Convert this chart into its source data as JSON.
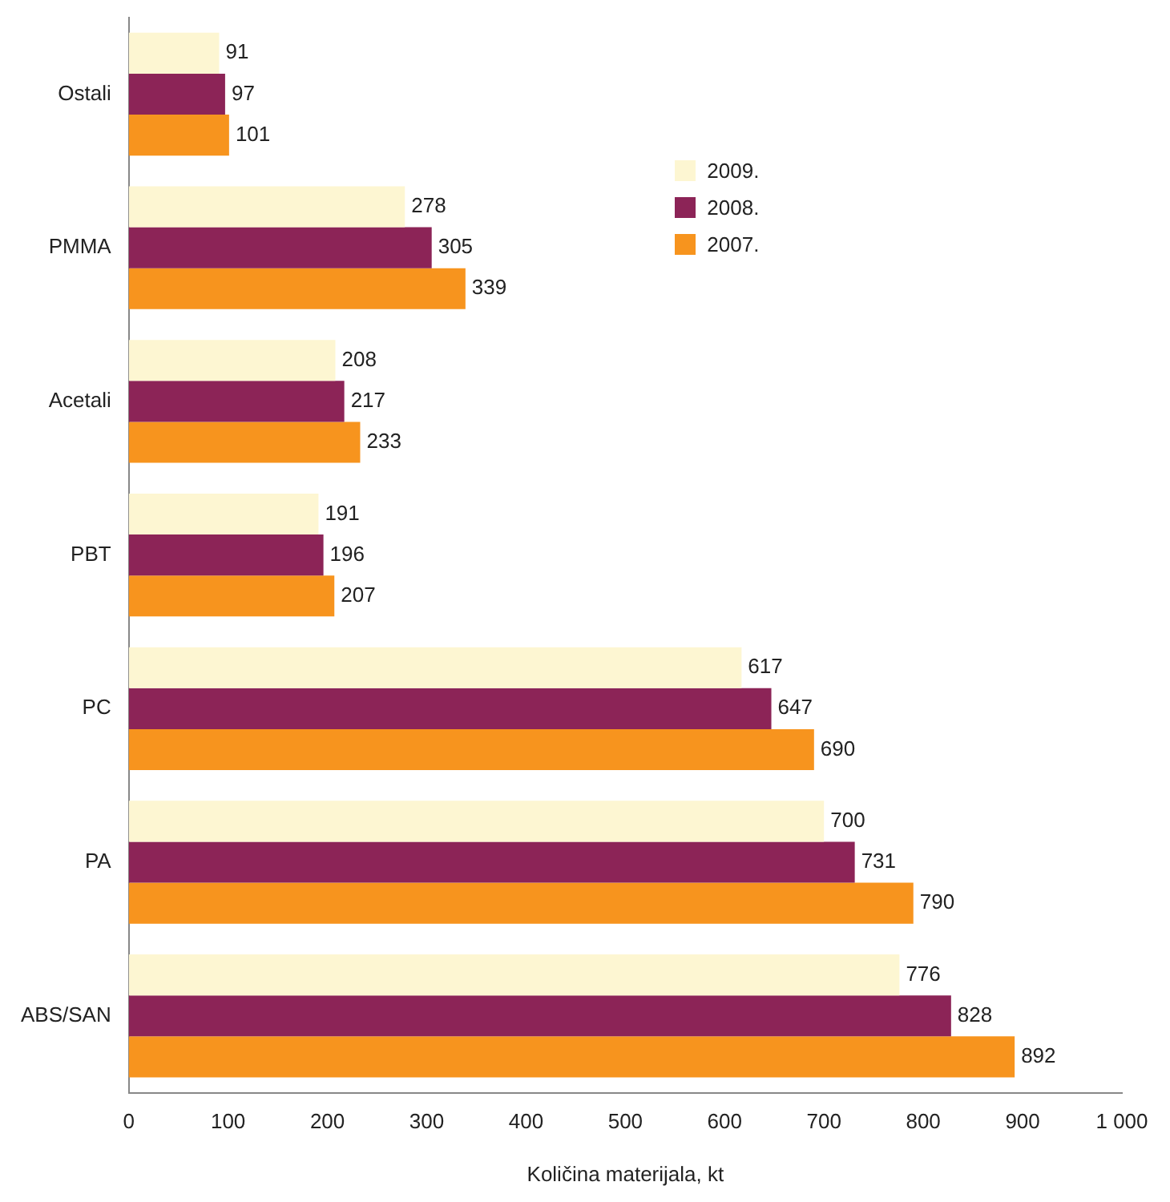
{
  "chart_data": {
    "type": "bar",
    "orientation": "horizontal",
    "xlabel": "Količina materijala, kt",
    "categories": [
      "Ostali",
      "PMMA",
      "Acetali",
      "PBT",
      "PC",
      "PA",
      "ABS/SAN"
    ],
    "series": [
      {
        "name": "2009.",
        "color": "#fdf6d2",
        "values": [
          91,
          278,
          208,
          191,
          617,
          700,
          776
        ]
      },
      {
        "name": "2008.",
        "color": "#8c2457",
        "values": [
          97,
          305,
          217,
          196,
          647,
          731,
          828
        ]
      },
      {
        "name": "2007.",
        "color": "#f7941e",
        "values": [
          101,
          339,
          233,
          207,
          690,
          790,
          892
        ]
      }
    ],
    "xlim": [
      0,
      1000
    ],
    "xticks": [
      0,
      100,
      200,
      300,
      400,
      500,
      600,
      700,
      800,
      900,
      {
        "value": 1000,
        "label": "1 000"
      }
    ],
    "grid": false,
    "legend": "center right",
    "data_labels": true
  }
}
